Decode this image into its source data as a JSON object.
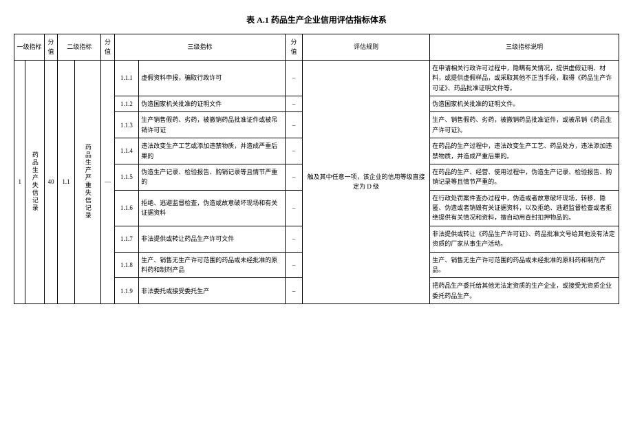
{
  "title": "表 A.1 药品生产企业信用评估指标体系",
  "headers": {
    "lvl1": "一级指标",
    "score1": "分值",
    "lvl2": "二级指标",
    "score2": "分值",
    "lvl3": "三级指标",
    "score3": "分值",
    "rule": "评估规则",
    "desc": "三级指标说明"
  },
  "lvl1": {
    "idx": "1",
    "name": "药品生产失信记录",
    "score": "40"
  },
  "lvl2": {
    "idx": "1.1",
    "name": "药品生产严重失信记录",
    "score": "—"
  },
  "rule": "触及其中任意一项，该企业的信用等级直接定为 D 级",
  "rows": [
    {
      "idx": "1.1.1",
      "name": "虚假资料申报，骗取行政许可",
      "score": "–",
      "desc": "在申请相关行政许可过程中，隐瞒有关情况，提供虚假证明、材料，或提供虚假样品，或采取其他不正当手段，取得《药品生产许可证》、药品批准证明文件等。"
    },
    {
      "idx": "1.1.2",
      "name": "伪造国家机关批准的证明文件",
      "score": "–",
      "desc": "伪造国家机关批准的证明文件。"
    },
    {
      "idx": "1.1.3",
      "name": "生产销售假药、劣药，被撤销药品批准证件或被吊销许可证",
      "score": "–",
      "desc": "生产、销售假药、劣药，被撤销药品批准证件，或被吊销《药品生产许可证》。"
    },
    {
      "idx": "1.1.4",
      "name": "违法改变生产工艺或添加违禁物质，并造成严重后果的",
      "score": "–",
      "desc": "在药品的生产过程中，违法改变生产工艺、药品处方，违法添加违禁物质，并造成严重后果的。"
    },
    {
      "idx": "1.1.5",
      "name": "伪造生产记录、检验报告、购销记录等且情节严重的",
      "score": "–",
      "desc": "在药品的生产、经营、使用过程中，伪造生产记录、检验报告、购销记录等且情节严重的。"
    },
    {
      "idx": "1.1.6",
      "name": "拒绝、逃避监督检查，伪造或故意破坏现场和有关证据资料",
      "score": "–",
      "desc": "在行政处罚案件查办过程中，伪造或者故意破坏现场，转移、隐匿、伪造或者销毁有关证据资料，以及拒绝、逃避监督检查或者拒绝提供有关情况和资料，擅自动用查封扣押物品的。"
    },
    {
      "idx": "1.1.7",
      "name": "非法提供或转让药品生产许可文件",
      "score": "–",
      "desc": "非法提供或转让《药品生产许可证》、药品批准文号给其他没有法定资质的厂家从事生产活动。"
    },
    {
      "idx": "1.1.8",
      "name": "生产、销售无生产许可范围的药品或未经批准的原料药和制剂产品",
      "score": "–",
      "desc": "生产、销售无生产许可范围的药品或未经批准的原料药和制剂产品。"
    },
    {
      "idx": "1.1.9",
      "name": "非法委托或接受委托生产",
      "score": "–",
      "desc": "把药品生产委托给其他无法定资质的生产企业，或接受无资质企业委托药品生产。"
    }
  ]
}
